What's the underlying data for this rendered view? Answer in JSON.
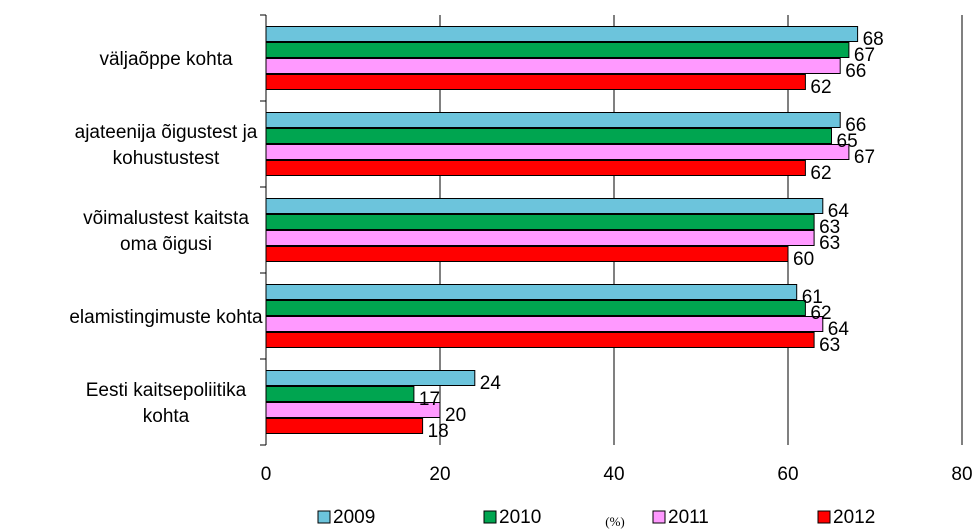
{
  "chart_data": {
    "type": "bar",
    "orientation": "horizontal",
    "categories": [
      [
        "väljaõppe kohta"
      ],
      [
        "ajateenija õigustest ja",
        "kohustustest"
      ],
      [
        "võimalustest kaitsta",
        "oma õigusi"
      ],
      [
        "elamistingimuste kohta"
      ],
      [
        "Eesti kaitsepoliitika",
        "kohta"
      ]
    ],
    "series": [
      {
        "name": "2009",
        "color": "#6CC4DC",
        "values": [
          68,
          66,
          64,
          61,
          24
        ]
      },
      {
        "name": "2010",
        "color": "#00A550",
        "values": [
          67,
          65,
          63,
          62,
          17
        ]
      },
      {
        "name": "2011",
        "color": "#FF99FF",
        "values": [
          66,
          67,
          63,
          64,
          20
        ]
      },
      {
        "name": "2012",
        "color": "#FF0000",
        "values": [
          62,
          62,
          60,
          63,
          18
        ]
      }
    ],
    "xlim": [
      0,
      80
    ],
    "xticks": [
      0,
      20,
      40,
      60,
      80
    ],
    "xlabel": "(%)",
    "grid": "vertical",
    "legend": "bottom"
  }
}
